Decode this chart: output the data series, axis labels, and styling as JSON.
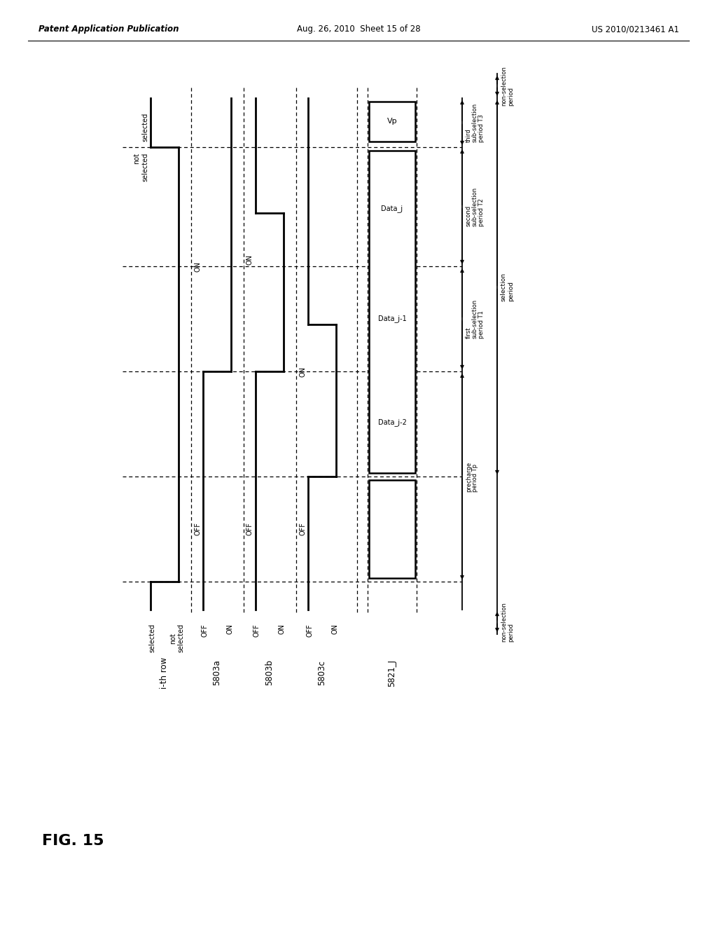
{
  "bg": "#ffffff",
  "header_left": "Patent Application Publication",
  "header_center": "Aug. 26, 2010  Sheet 15 of 28",
  "header_right": "US 2010/0213461 A1",
  "fig_label": "FIG. 15",
  "signal_names": [
    "i-th row",
    "5803a",
    "5803b",
    "5803c",
    "5821_J"
  ],
  "ith_state_hi": "selected",
  "ith_state_lo": "not\nselected",
  "on_label": "ON",
  "off_label": "OFF",
  "vp_label": "Vp",
  "data_labels": [
    "Data_j-2",
    "Data_j-1",
    "Data_j"
  ],
  "period_labels": {
    "non_sel": "non-selection\nperiod",
    "precharge": "precharge\nperiod Tp",
    "t1": "first\nsub-selection\nperiod T1",
    "t2": "second\nsub-selection\nperiod T2",
    "t3": "third\nsub-selection\nperiod T3",
    "selection": "selection\nperiod"
  }
}
